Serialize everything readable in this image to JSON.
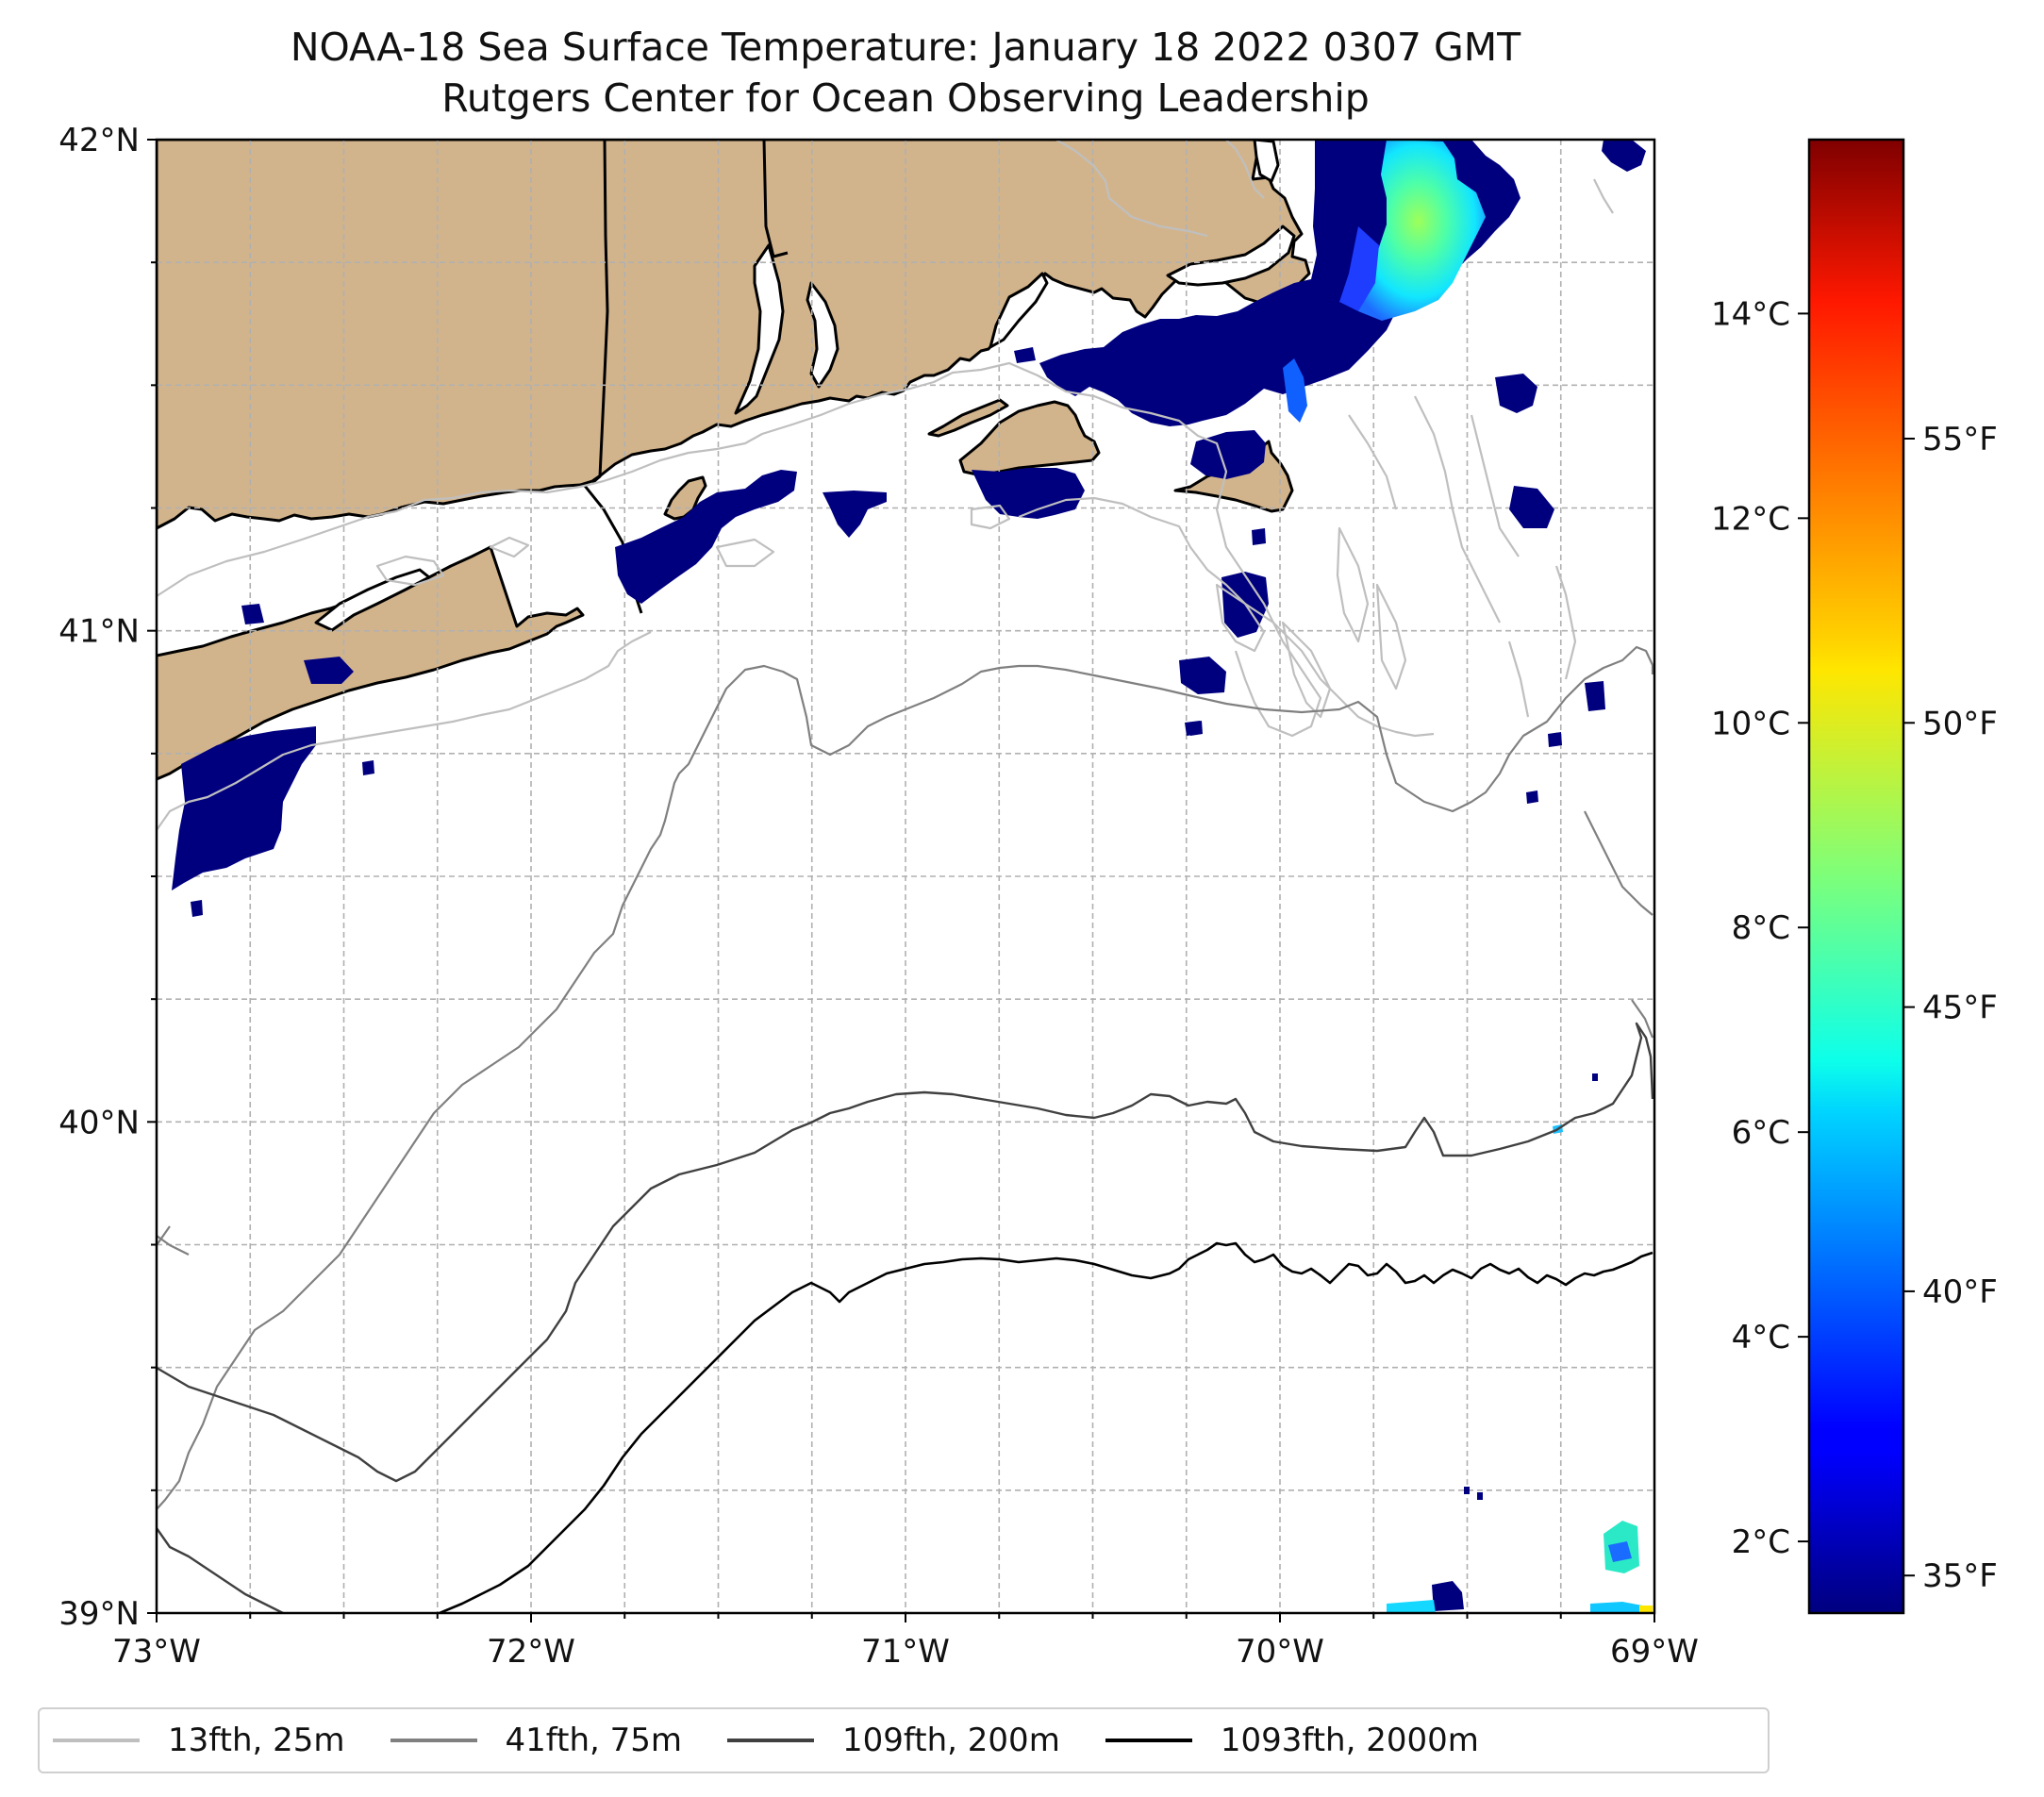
{
  "title": {
    "line1": "NOAA-18 Sea Surface Temperature: January 18 2022 0307 GMT",
    "line2": "Rutgers Center for Ocean Observing Leadership"
  },
  "map": {
    "extent": {
      "lon": [
        -73,
        -69
      ],
      "lat": [
        39,
        42
      ]
    },
    "lat_ticks": [
      {
        "value": 42,
        "label": "42°N"
      },
      {
        "value": 41,
        "label": "41°N"
      },
      {
        "value": 40,
        "label": "40°N"
      },
      {
        "value": 39,
        "label": "39°N"
      }
    ],
    "lon_ticks": [
      {
        "value": -73,
        "label": "73°W"
      },
      {
        "value": -72,
        "label": "72°W"
      },
      {
        "value": -71,
        "label": "71°W"
      },
      {
        "value": -70,
        "label": "70°W"
      },
      {
        "value": -69,
        "label": "69°W"
      }
    ],
    "grid": true,
    "land_color": "#d2b48c",
    "ocean_color": "#ffffff"
  },
  "colorbar": {
    "colormap": "jet",
    "range_c": [
      1.3,
      15.7
    ],
    "celsius_ticks": [
      {
        "value": 2,
        "label": "2°C"
      },
      {
        "value": 4,
        "label": "4°C"
      },
      {
        "value": 6,
        "label": "6°C"
      },
      {
        "value": 8,
        "label": "8°C"
      },
      {
        "value": 10,
        "label": "10°C"
      },
      {
        "value": 12,
        "label": "12°C"
      },
      {
        "value": 14,
        "label": "14°C"
      }
    ],
    "fahrenheit_ticks": [
      {
        "value": 35,
        "label": "35°F"
      },
      {
        "value": 40,
        "label": "40°F"
      },
      {
        "value": 45,
        "label": "45°F"
      },
      {
        "value": 50,
        "label": "50°F"
      },
      {
        "value": 55,
        "label": "55°F"
      }
    ]
  },
  "legend": {
    "entries": [
      {
        "label": "13fth, 25m",
        "color": "#bfbfbf"
      },
      {
        "label": "41fth, 75m",
        "color": "#808080"
      },
      {
        "label": "109fth, 200m",
        "color": "#404040"
      },
      {
        "label": "1093fth, 2000m",
        "color": "#000000"
      }
    ]
  }
}
